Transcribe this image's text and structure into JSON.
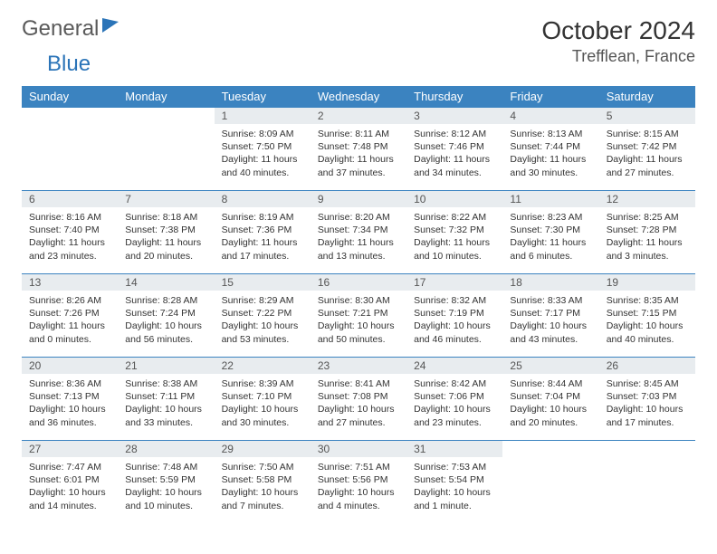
{
  "logo": {
    "part1": "General",
    "part2": "Blue"
  },
  "title": "October 2024",
  "location": "Trefflean, France",
  "colors": {
    "header_bg": "#3b83c0",
    "header_text": "#ffffff",
    "daynum_bg": "#e8ecef",
    "rule": "#3b83c0",
    "text": "#333333",
    "logo_gray": "#5a5a5a",
    "logo_blue": "#2b74b8"
  },
  "fonts": {
    "title_size": 28,
    "location_size": 18,
    "weekday_size": 13,
    "body_size": 10.5
  },
  "weekdays": [
    "Sunday",
    "Monday",
    "Tuesday",
    "Wednesday",
    "Thursday",
    "Friday",
    "Saturday"
  ],
  "month": {
    "year": 2024,
    "month": 10,
    "days_in_month": 31,
    "first_weekday_index": 2
  },
  "days": [
    {
      "n": 1,
      "sunrise": "8:09 AM",
      "sunset": "7:50 PM",
      "daylight": "11 hours and 40 minutes."
    },
    {
      "n": 2,
      "sunrise": "8:11 AM",
      "sunset": "7:48 PM",
      "daylight": "11 hours and 37 minutes."
    },
    {
      "n": 3,
      "sunrise": "8:12 AM",
      "sunset": "7:46 PM",
      "daylight": "11 hours and 34 minutes."
    },
    {
      "n": 4,
      "sunrise": "8:13 AM",
      "sunset": "7:44 PM",
      "daylight": "11 hours and 30 minutes."
    },
    {
      "n": 5,
      "sunrise": "8:15 AM",
      "sunset": "7:42 PM",
      "daylight": "11 hours and 27 minutes."
    },
    {
      "n": 6,
      "sunrise": "8:16 AM",
      "sunset": "7:40 PM",
      "daylight": "11 hours and 23 minutes."
    },
    {
      "n": 7,
      "sunrise": "8:18 AM",
      "sunset": "7:38 PM",
      "daylight": "11 hours and 20 minutes."
    },
    {
      "n": 8,
      "sunrise": "8:19 AM",
      "sunset": "7:36 PM",
      "daylight": "11 hours and 17 minutes."
    },
    {
      "n": 9,
      "sunrise": "8:20 AM",
      "sunset": "7:34 PM",
      "daylight": "11 hours and 13 minutes."
    },
    {
      "n": 10,
      "sunrise": "8:22 AM",
      "sunset": "7:32 PM",
      "daylight": "11 hours and 10 minutes."
    },
    {
      "n": 11,
      "sunrise": "8:23 AM",
      "sunset": "7:30 PM",
      "daylight": "11 hours and 6 minutes."
    },
    {
      "n": 12,
      "sunrise": "8:25 AM",
      "sunset": "7:28 PM",
      "daylight": "11 hours and 3 minutes."
    },
    {
      "n": 13,
      "sunrise": "8:26 AM",
      "sunset": "7:26 PM",
      "daylight": "11 hours and 0 minutes."
    },
    {
      "n": 14,
      "sunrise": "8:28 AM",
      "sunset": "7:24 PM",
      "daylight": "10 hours and 56 minutes."
    },
    {
      "n": 15,
      "sunrise": "8:29 AM",
      "sunset": "7:22 PM",
      "daylight": "10 hours and 53 minutes."
    },
    {
      "n": 16,
      "sunrise": "8:30 AM",
      "sunset": "7:21 PM",
      "daylight": "10 hours and 50 minutes."
    },
    {
      "n": 17,
      "sunrise": "8:32 AM",
      "sunset": "7:19 PM",
      "daylight": "10 hours and 46 minutes."
    },
    {
      "n": 18,
      "sunrise": "8:33 AM",
      "sunset": "7:17 PM",
      "daylight": "10 hours and 43 minutes."
    },
    {
      "n": 19,
      "sunrise": "8:35 AM",
      "sunset": "7:15 PM",
      "daylight": "10 hours and 40 minutes."
    },
    {
      "n": 20,
      "sunrise": "8:36 AM",
      "sunset": "7:13 PM",
      "daylight": "10 hours and 36 minutes."
    },
    {
      "n": 21,
      "sunrise": "8:38 AM",
      "sunset": "7:11 PM",
      "daylight": "10 hours and 33 minutes."
    },
    {
      "n": 22,
      "sunrise": "8:39 AM",
      "sunset": "7:10 PM",
      "daylight": "10 hours and 30 minutes."
    },
    {
      "n": 23,
      "sunrise": "8:41 AM",
      "sunset": "7:08 PM",
      "daylight": "10 hours and 27 minutes."
    },
    {
      "n": 24,
      "sunrise": "8:42 AM",
      "sunset": "7:06 PM",
      "daylight": "10 hours and 23 minutes."
    },
    {
      "n": 25,
      "sunrise": "8:44 AM",
      "sunset": "7:04 PM",
      "daylight": "10 hours and 20 minutes."
    },
    {
      "n": 26,
      "sunrise": "8:45 AM",
      "sunset": "7:03 PM",
      "daylight": "10 hours and 17 minutes."
    },
    {
      "n": 27,
      "sunrise": "7:47 AM",
      "sunset": "6:01 PM",
      "daylight": "10 hours and 14 minutes."
    },
    {
      "n": 28,
      "sunrise": "7:48 AM",
      "sunset": "5:59 PM",
      "daylight": "10 hours and 10 minutes."
    },
    {
      "n": 29,
      "sunrise": "7:50 AM",
      "sunset": "5:58 PM",
      "daylight": "10 hours and 7 minutes."
    },
    {
      "n": 30,
      "sunrise": "7:51 AM",
      "sunset": "5:56 PM",
      "daylight": "10 hours and 4 minutes."
    },
    {
      "n": 31,
      "sunrise": "7:53 AM",
      "sunset": "5:54 PM",
      "daylight": "10 hours and 1 minute."
    }
  ],
  "labels": {
    "sunrise": "Sunrise:",
    "sunset": "Sunset:",
    "daylight": "Daylight:"
  }
}
